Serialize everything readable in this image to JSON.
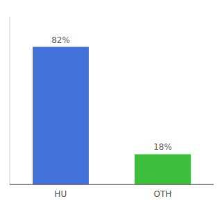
{
  "chart_data": {
    "type": "bar",
    "categories": [
      "HU",
      "OTH"
    ],
    "values": [
      82,
      18
    ],
    "colors": [
      "#4472db",
      "#3dbf3d"
    ],
    "value_labels": [
      "82%",
      "18%"
    ],
    "data_labels": true,
    "ylim": [
      0,
      100
    ],
    "tick_labels": "x"
  }
}
